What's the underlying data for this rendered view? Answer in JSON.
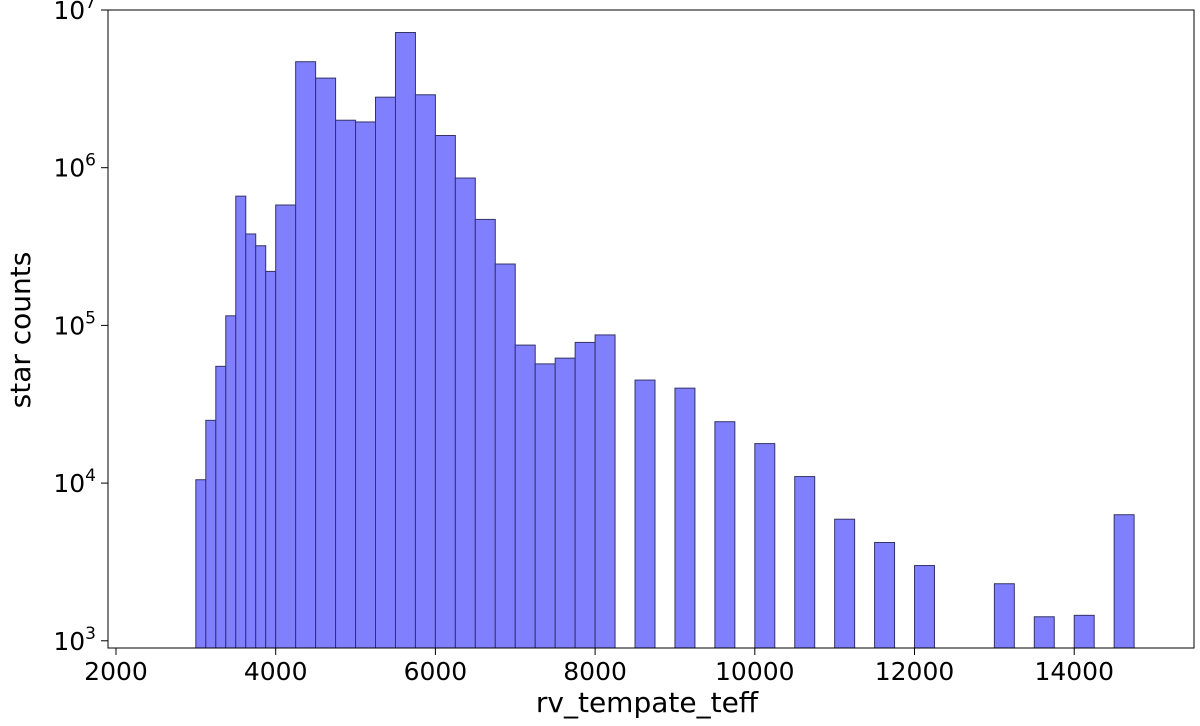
{
  "chart_data": {
    "type": "bar",
    "title": "",
    "xlabel": "rv_tempate_teff",
    "ylabel": "star counts",
    "xlim": [
      1900,
      15500
    ],
    "ylim": [
      900,
      10000000
    ],
    "yscale": "log",
    "grid": false,
    "bar_color": "#8080ff",
    "edge_color": "#333366",
    "x_ticks": [
      {
        "value": 2000,
        "label": "2000"
      },
      {
        "value": 4000,
        "label": "4000"
      },
      {
        "value": 6000,
        "label": "6000"
      },
      {
        "value": 8000,
        "label": "8000"
      },
      {
        "value": 10000,
        "label": "10000"
      },
      {
        "value": 12000,
        "label": "12000"
      },
      {
        "value": 14000,
        "label": "14000"
      }
    ],
    "y_ticks": [
      {
        "value": 1000,
        "base": "10",
        "exp": "3"
      },
      {
        "value": 10000,
        "base": "10",
        "exp": "4"
      },
      {
        "value": 100000,
        "base": "10",
        "exp": "5"
      },
      {
        "value": 1000000,
        "base": "10",
        "exp": "6"
      },
      {
        "value": 10000000,
        "base": "10",
        "exp": "7"
      }
    ],
    "bars": [
      {
        "x0": 3000,
        "x1": 3125,
        "value": 10500
      },
      {
        "x0": 3125,
        "x1": 3250,
        "value": 25000
      },
      {
        "x0": 3250,
        "x1": 3375,
        "value": 55000
      },
      {
        "x0": 3375,
        "x1": 3500,
        "value": 115000
      },
      {
        "x0": 3500,
        "x1": 3625,
        "value": 660000
      },
      {
        "x0": 3625,
        "x1": 3750,
        "value": 380000
      },
      {
        "x0": 3750,
        "x1": 3875,
        "value": 320000
      },
      {
        "x0": 3875,
        "x1": 4000,
        "value": 220000
      },
      {
        "x0": 4000,
        "x1": 4250,
        "value": 580000
      },
      {
        "x0": 4250,
        "x1": 4500,
        "value": 4700000
      },
      {
        "x0": 4500,
        "x1": 4750,
        "value": 3700000
      },
      {
        "x0": 4750,
        "x1": 5000,
        "value": 2000000
      },
      {
        "x0": 5000,
        "x1": 5250,
        "value": 1950000
      },
      {
        "x0": 5250,
        "x1": 5500,
        "value": 2800000
      },
      {
        "x0": 5500,
        "x1": 5750,
        "value": 7200000
      },
      {
        "x0": 5750,
        "x1": 6000,
        "value": 2900000
      },
      {
        "x0": 6000,
        "x1": 6250,
        "value": 1600000
      },
      {
        "x0": 6250,
        "x1": 6500,
        "value": 860000
      },
      {
        "x0": 6500,
        "x1": 6750,
        "value": 470000
      },
      {
        "x0": 6750,
        "x1": 7000,
        "value": 245000
      },
      {
        "x0": 7000,
        "x1": 7250,
        "value": 75000
      },
      {
        "x0": 7250,
        "x1": 7500,
        "value": 57000
      },
      {
        "x0": 7500,
        "x1": 7750,
        "value": 62000
      },
      {
        "x0": 7750,
        "x1": 8000,
        "value": 78000
      },
      {
        "x0": 8000,
        "x1": 8250,
        "value": 87000
      },
      {
        "x0": 8500,
        "x1": 8750,
        "value": 45000
      },
      {
        "x0": 9000,
        "x1": 9250,
        "value": 40000
      },
      {
        "x0": 9500,
        "x1": 9750,
        "value": 24500
      },
      {
        "x0": 10000,
        "x1": 10250,
        "value": 17800
      },
      {
        "x0": 10500,
        "x1": 10750,
        "value": 11000
      },
      {
        "x0": 11000,
        "x1": 11250,
        "value": 5900
      },
      {
        "x0": 11500,
        "x1": 11750,
        "value": 4200
      },
      {
        "x0": 12000,
        "x1": 12250,
        "value": 3000
      },
      {
        "x0": 13000,
        "x1": 13250,
        "value": 2300
      },
      {
        "x0": 13500,
        "x1": 13750,
        "value": 1420
      },
      {
        "x0": 14000,
        "x1": 14250,
        "value": 1450
      },
      {
        "x0": 14500,
        "x1": 14750,
        "value": 6300
      }
    ]
  }
}
